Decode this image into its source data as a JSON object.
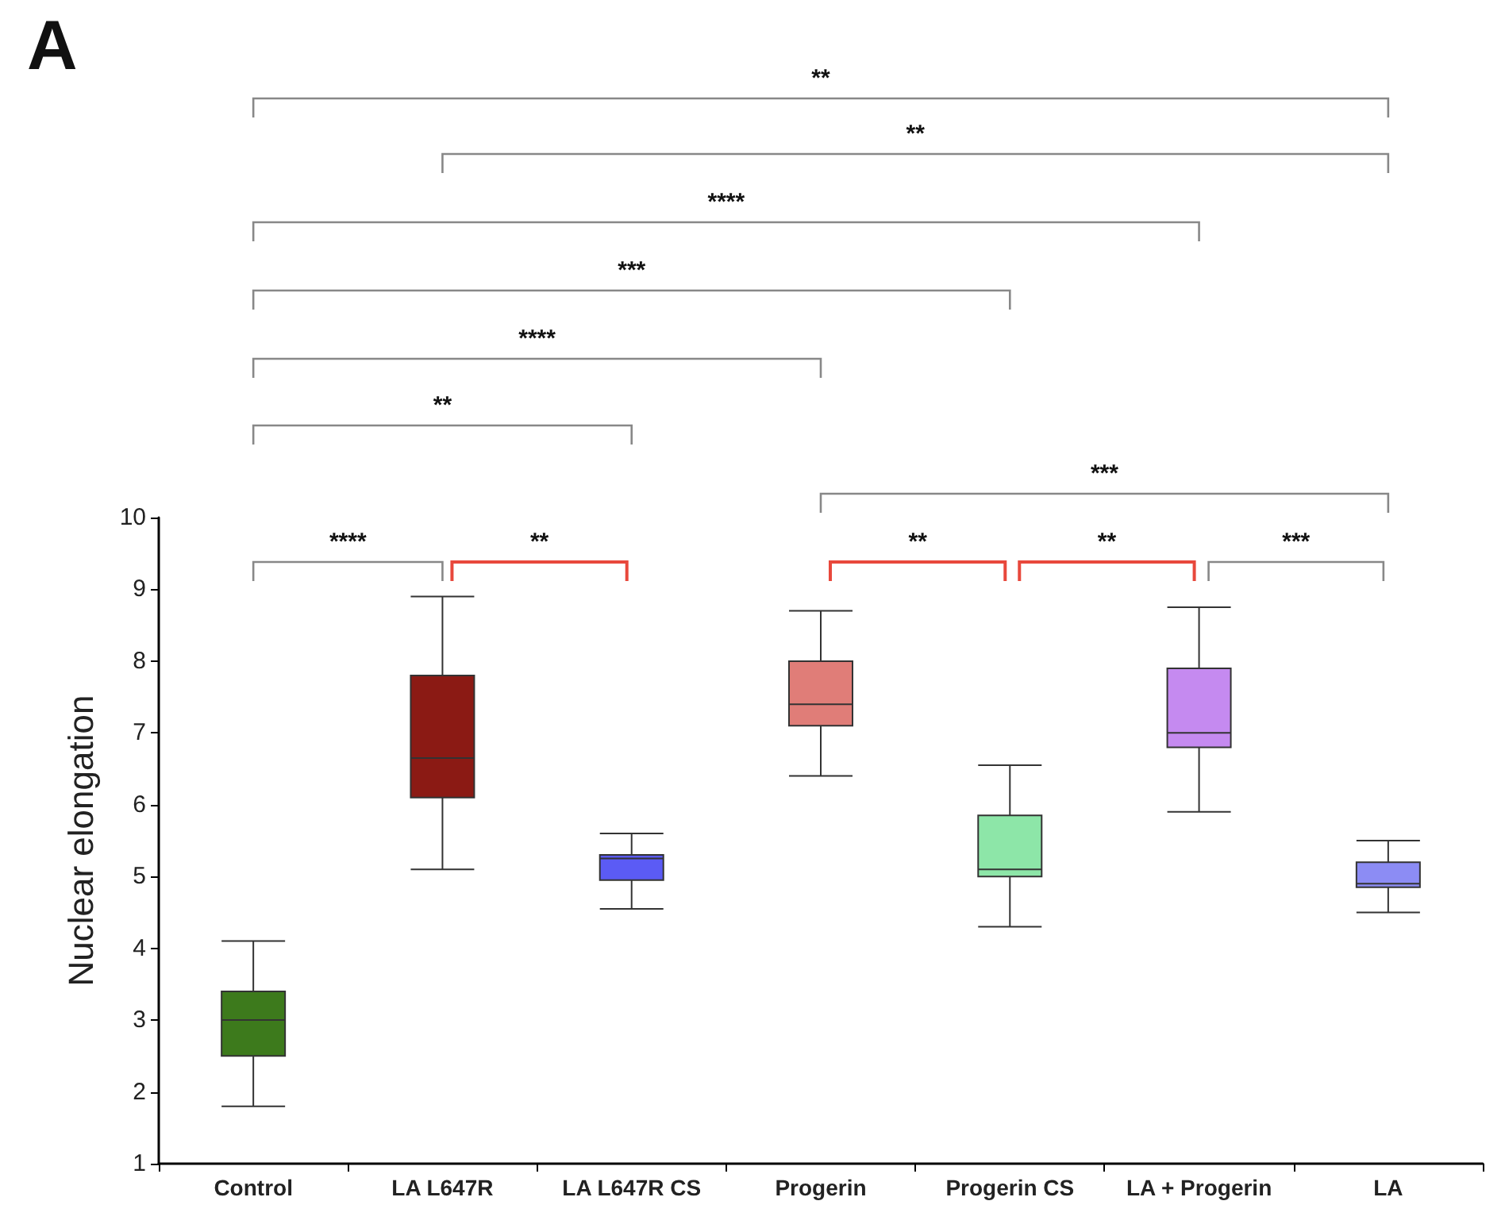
{
  "chart_data": {
    "type": "box",
    "title": "A",
    "ylabel": "Nuclear elongation",
    "categories": [
      "Control",
      "LA L647R",
      "LA L647R CS",
      "Progerin",
      "Progerin CS",
      "LA + Progerin",
      "LA"
    ],
    "boxes": [
      {
        "low": 1.8,
        "q1": 2.5,
        "median": 3.0,
        "q3": 3.4,
        "high": 4.1
      },
      {
        "low": 5.1,
        "q1": 6.1,
        "median": 6.65,
        "q3": 7.8,
        "high": 8.9
      },
      {
        "low": 4.55,
        "q1": 4.95,
        "median": 5.25,
        "q3": 5.3,
        "high": 5.6
      },
      {
        "low": 6.4,
        "q1": 7.1,
        "median": 7.4,
        "q3": 8.0,
        "high": 8.7
      },
      {
        "low": 4.3,
        "q1": 5.0,
        "median": 5.1,
        "q3": 5.85,
        "high": 6.55
      },
      {
        "low": 5.9,
        "q1": 6.8,
        "median": 7.0,
        "q3": 7.9,
        "high": 8.75
      },
      {
        "low": 4.5,
        "q1": 4.85,
        "median": 4.9,
        "q3": 5.2,
        "high": 5.5
      }
    ],
    "colors": [
      "#3d7a1c",
      "#8b1a14",
      "#5b5bf5",
      "#e07d78",
      "#8de6a8",
      "#c58af0",
      "#8c8cf4"
    ],
    "ylim": [
      1,
      10
    ],
    "yticks": [
      1,
      2,
      3,
      4,
      5,
      6,
      7,
      8,
      9,
      10
    ],
    "annotations": [
      "**",
      "**",
      "****",
      "***",
      "****",
      "**",
      "***",
      "****",
      "**",
      "**",
      "**",
      "***"
    ]
  }
}
